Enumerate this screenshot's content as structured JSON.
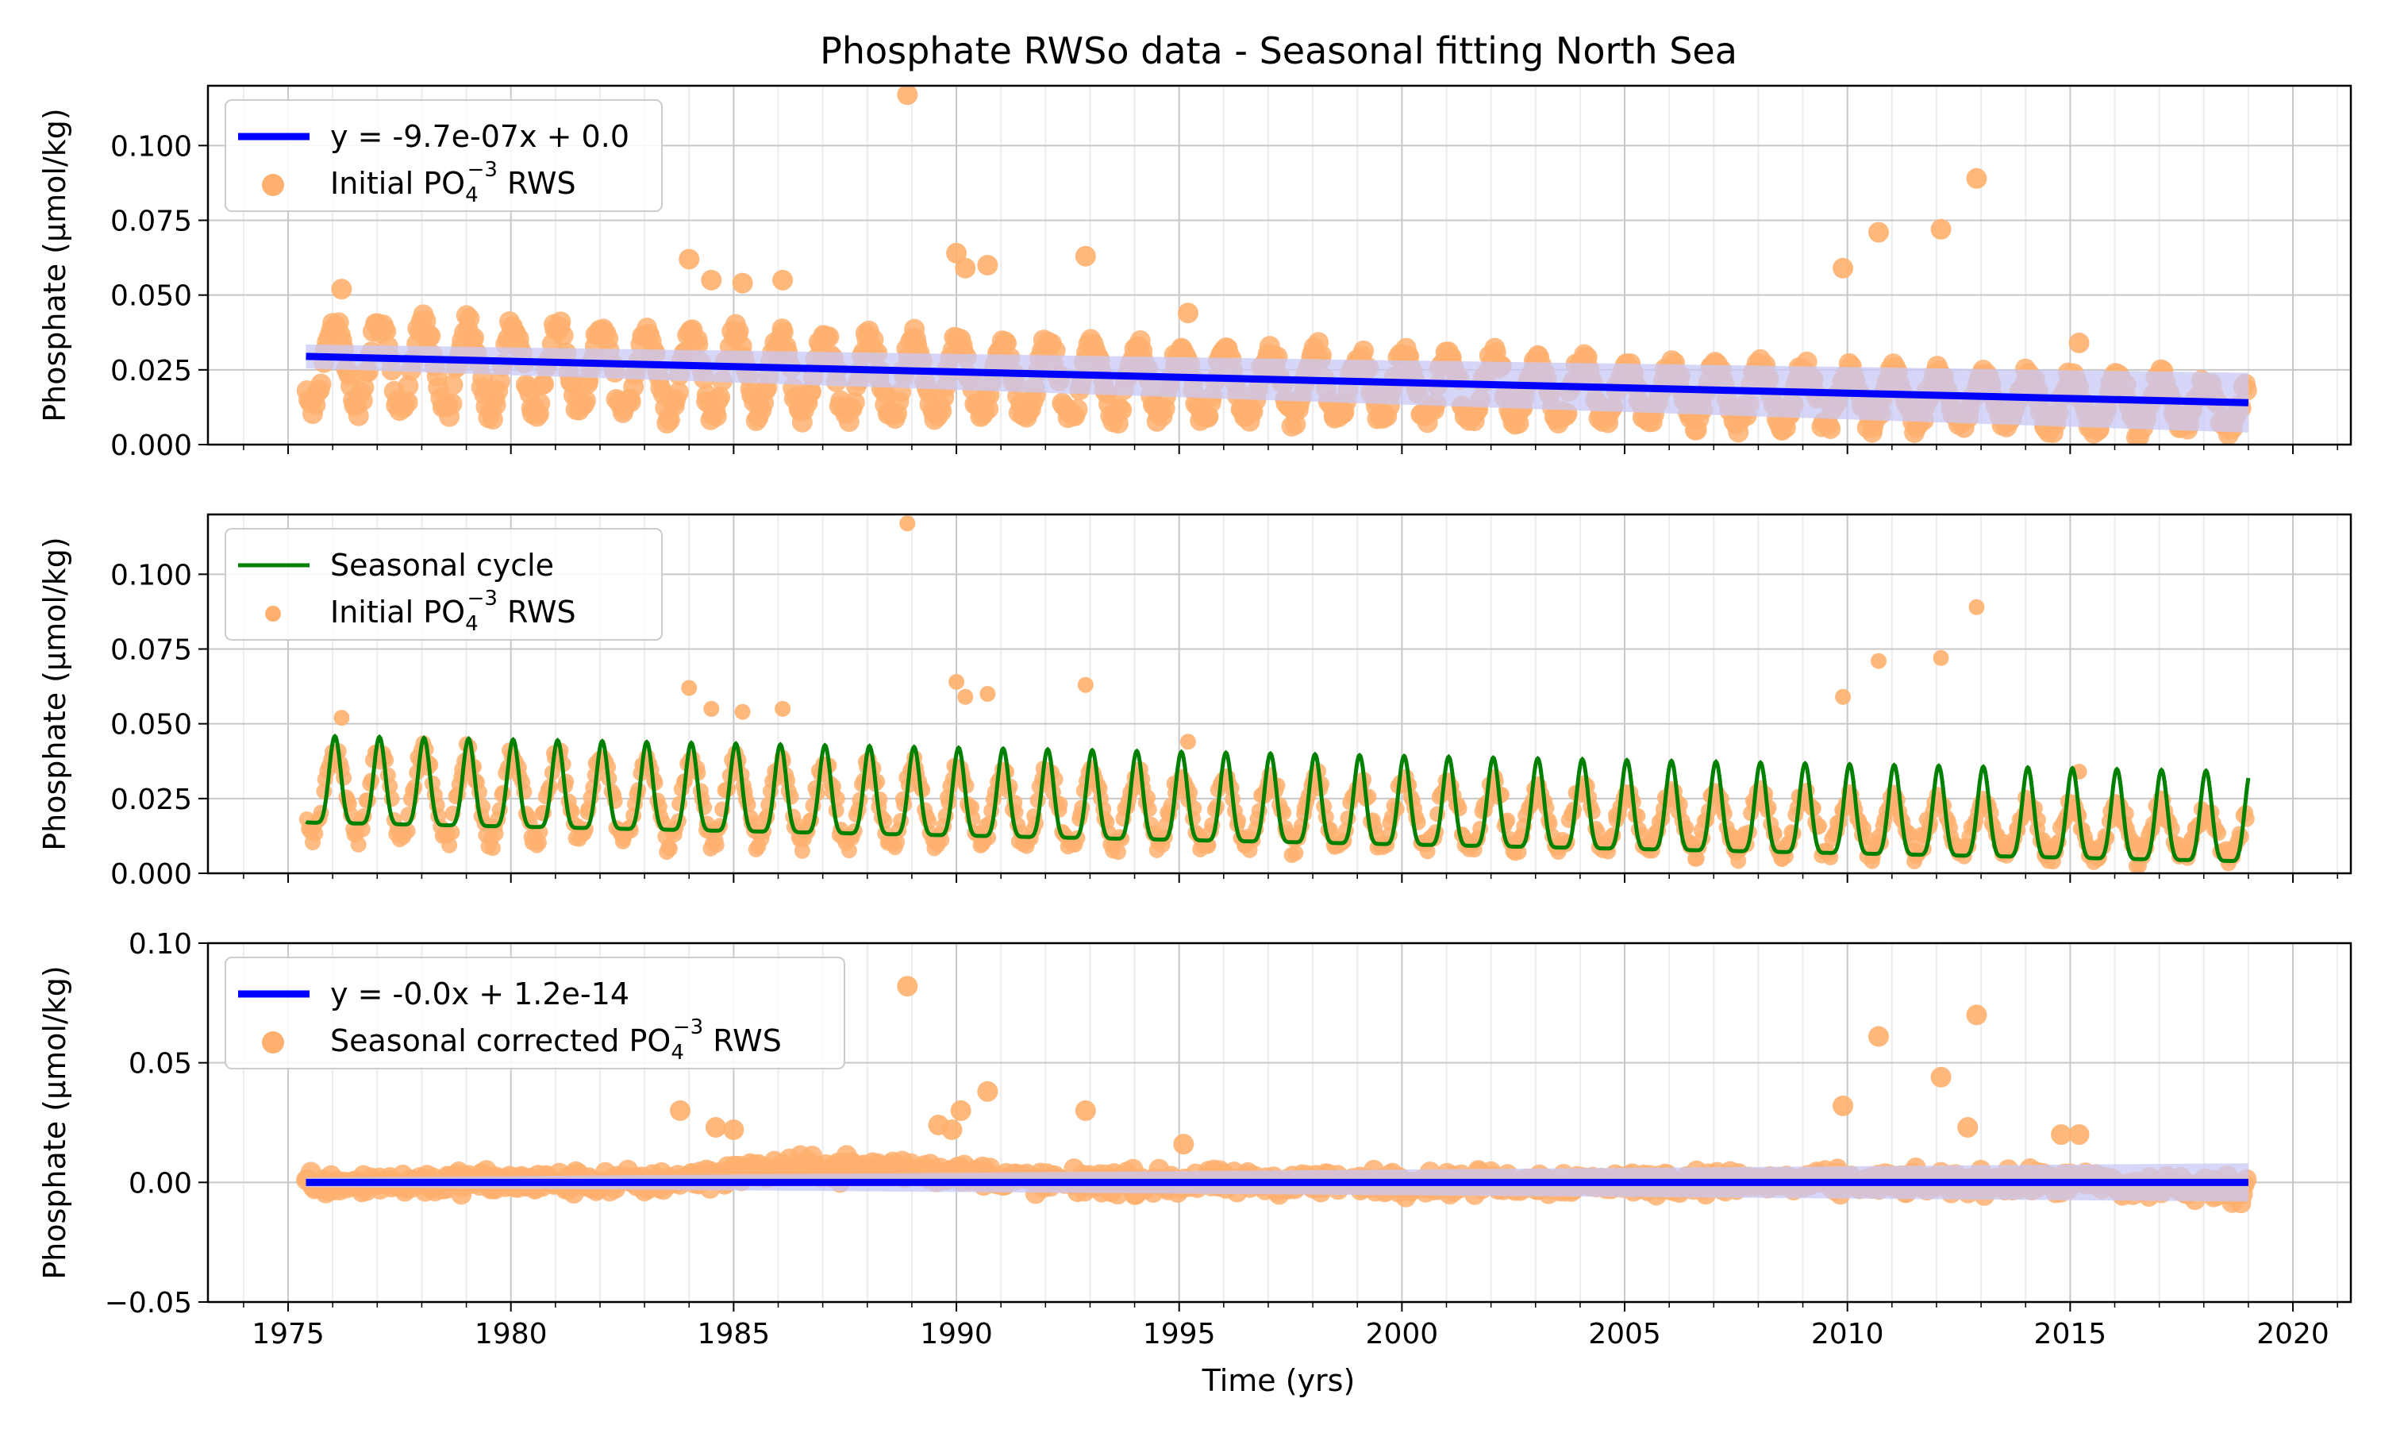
{
  "figure": {
    "title": "Phosphate RWSo data - Seasonal fitting North Sea",
    "xlabel": "Time (yrs)",
    "x_ticks": [
      "1975",
      "1980",
      "1985",
      "1990",
      "1995",
      "2000",
      "2005",
      "2010",
      "2015",
      "2020"
    ],
    "colors": {
      "scatter": "#ffb06e",
      "trend": "#0000ff",
      "band": "#c8c8f5",
      "seasonal": "#008000",
      "grid": "#c8c8c8"
    }
  },
  "chart_data": [
    {
      "type": "scatter",
      "title": "Phosphate RWSo data - Seasonal fitting North Sea",
      "xlabel": "",
      "ylabel": "Phosphate (µmol/kg)",
      "xlim": [
        1973.2,
        2021.3
      ],
      "ylim": [
        0.0,
        0.12
      ],
      "yticks": [
        "0.000",
        "0.025",
        "0.050",
        "0.075",
        "0.100"
      ],
      "grid": true,
      "legend_position": "upper-left",
      "legend": [
        {
          "kind": "line",
          "label": "y = -9.7e-07x + 0.0"
        },
        {
          "kind": "marker",
          "label_main": "Initial PO",
          "label_sub": "4",
          "label_sup": "−3",
          "label_tail": " RWS"
        }
      ],
      "trend": {
        "x": [
          1975.4,
          2019.0
        ],
        "y": [
          0.0295,
          0.014
        ],
        "band": [
          0.004,
          0.01
        ]
      },
      "outliers": {
        "x": [
          1976.2,
          1984.0,
          1984.5,
          1985.2,
          1986.1,
          1988.9,
          1990.0,
          1990.2,
          1990.7,
          1992.9,
          1995.2,
          2009.9,
          2010.7,
          2012.1,
          2012.9,
          2015.2
        ],
        "y": [
          0.052,
          0.062,
          0.055,
          0.054,
          0.055,
          0.117,
          0.064,
          0.059,
          0.06,
          0.063,
          0.044,
          0.059,
          0.071,
          0.072,
          0.089,
          0.034
        ]
      },
      "series": [
        {
          "kind": "points",
          "source": "generated-seasonal",
          "start": 1975.4,
          "end": 2019.0,
          "per_year": 24,
          "base_start": 0.027,
          "base_end": 0.013,
          "amplitude_start": 0.015,
          "amplitude_end": 0.008
        }
      ]
    },
    {
      "type": "line",
      "ylabel": "Phosphate (µmol/kg)",
      "xlim": [
        1973.2,
        2021.3
      ],
      "ylim": [
        0.0,
        0.12
      ],
      "yticks": [
        "0.000",
        "0.025",
        "0.050",
        "0.075",
        "0.100"
      ],
      "grid": true,
      "legend_position": "upper-left",
      "legend": [
        {
          "kind": "line",
          "label": "Seasonal cycle"
        },
        {
          "kind": "marker",
          "label_main": "Initial PO",
          "label_sub": "4",
          "label_sup": "−3",
          "label_tail": " RWS"
        }
      ],
      "seasonal_cycle": {
        "start": 1975.4,
        "end": 2019.0,
        "peak_start": 0.046,
        "trough_start": 0.017,
        "peak_end": 0.034,
        "trough_end": 0.004
      }
    },
    {
      "type": "scatter",
      "ylabel": "Phosphate (µmol/kg)",
      "xlabel": "Time (yrs)",
      "xlim": [
        1973.2,
        2021.3
      ],
      "ylim": [
        -0.05,
        0.1
      ],
      "yticks": [
        "−0.05",
        "0.00",
        "0.05",
        "0.10"
      ],
      "grid": true,
      "legend_position": "upper-left",
      "legend": [
        {
          "kind": "line",
          "label": "y = -0.0x + 1.2e-14"
        },
        {
          "kind": "marker",
          "label_main": "Seasonal corrected PO",
          "label_sub": "4",
          "label_sup": "−3",
          "label_tail": " RWS"
        }
      ],
      "trend": {
        "x": [
          1975.4,
          2019.0
        ],
        "y": [
          0.0,
          0.0
        ],
        "band": [
          0.002,
          0.008
        ]
      },
      "outliers": {
        "x": [
          1983.8,
          1984.6,
          1985.0,
          1988.9,
          1989.6,
          1989.9,
          1990.1,
          1990.7,
          1992.9,
          1995.1,
          2009.9,
          2010.7,
          2012.1,
          2012.7,
          2012.9,
          2014.8,
          2015.2
        ],
        "y": [
          0.03,
          0.023,
          0.022,
          0.082,
          0.024,
          0.022,
          0.03,
          0.038,
          0.03,
          0.016,
          0.032,
          0.061,
          0.044,
          0.023,
          0.07,
          0.02,
          0.02
        ]
      },
      "series": [
        {
          "kind": "points",
          "source": "generated-residuals",
          "start": 1975.4,
          "end": 2019.0,
          "per_year": 24
        }
      ]
    }
  ]
}
